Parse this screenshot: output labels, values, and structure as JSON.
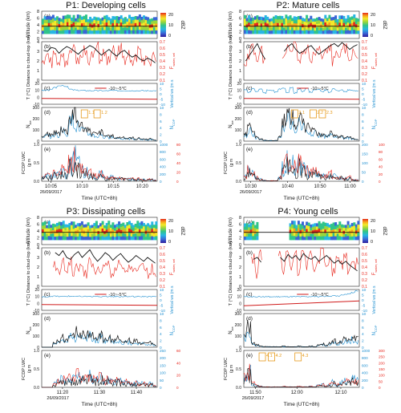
{
  "colors": {
    "black": "#111111",
    "red": "#e8281e",
    "blue": "#1f8fd0",
    "orange": "#e69a1a",
    "tr_red": "#d01b1b",
    "colorbar": [
      "#2e1b9b",
      "#3a66d6",
      "#28b6e4",
      "#31c48a",
      "#9ad63c",
      "#f2e92a",
      "#f7a21c",
      "#e4281c"
    ]
  },
  "labels": {
    "alt": "Altitude (km)",
    "dct": "Distance to cloud-top (km)",
    "fwater": "F",
    "fwater_sub": "water, vel",
    "temp": "T (°C)",
    "ww": "Vertical ws (m s",
    "nice": "N",
    "nice_sub": "ice",
    "ndrop": "N",
    "ndrop_sub": "CDP",
    "fcdp": "FCDP LWC",
    "fcdp_unit": "(g m",
    "time": "Time (UTC+8h)",
    "date": "26/09/2017",
    "dbz": "dBZ",
    "cb_ticks": [
      "20",
      "10",
      "0"
    ],
    "legend": "-10~-5°C"
  },
  "chart_data": [
    {
      "type": "line",
      "title": "P1: Developing cells",
      "x_ticks": [
        "10:05",
        "10:10",
        "10:15",
        "10:20"
      ],
      "x_ticks_pos": [
        0.08,
        0.35,
        0.62,
        0.87
      ],
      "date_x": 0.08,
      "panels": {
        "a": {
          "ylim": [
            0,
            8
          ],
          "ticks": [
            "0",
            "2",
            "4",
            "6",
            "8"
          ]
        },
        "b": {
          "ylim": [
            0,
            4
          ],
          "ticks": [
            "0",
            "1",
            "2",
            "3",
            "4"
          ],
          "r_ticks": [
            "0.1",
            "0.2",
            "0.3",
            "0.4",
            "0.5",
            "0.6",
            "0.7"
          ]
        },
        "c": {
          "ticks": [
            "20",
            "10",
            "0",
            "-10"
          ],
          "r_ticks": [
            "10",
            "5",
            "0",
            "-5",
            "-10"
          ]
        },
        "d": {
          "ticks": [
            "300",
            "200",
            "100",
            "0"
          ],
          "r_ticks": [
            "10",
            "8",
            "6",
            "4",
            "2",
            "0"
          ]
        },
        "e": {
          "ticks": [
            "1.0",
            "0.5",
            "0.0"
          ],
          "r_ticks": [
            "1000",
            "800",
            "600",
            "400",
            "200",
            "0"
          ],
          "r2_ticks": [
            "80",
            "60",
            "40",
            "20",
            "0"
          ]
        }
      },
      "annotations": [
        {
          "text": "1.1",
          "x": 0.37,
          "panel": "d"
        },
        {
          "text": "1.2",
          "x": 0.48,
          "panel": "d"
        }
      ],
      "dct_series": [
        3.1,
        3.0,
        3.4,
        3.3,
        2.8,
        3.2,
        3.5,
        3.3,
        3.0,
        2.7,
        3.1,
        3.3,
        3.6,
        3.4,
        3.0,
        2.6,
        2.9,
        3.2,
        2.8,
        2.5,
        2.9,
        3.1,
        2.7,
        2.4,
        2.6,
        2.2,
        2.0,
        2.3,
        2.1,
        1.8
      ],
      "fw_series": [
        0.45,
        0.52,
        0.38,
        0.6,
        0.42,
        0.55,
        0.35,
        0.5,
        0.62,
        0.41,
        0.48,
        0.58,
        0.4,
        0.52,
        0.66,
        0.45,
        0.5,
        0.38,
        0.55,
        0.44,
        0.6,
        0.4,
        0.5,
        0.35,
        0.46,
        0.58,
        0.42,
        0.5,
        0.38,
        0.45
      ],
      "nice_series": [
        40,
        60,
        55,
        80,
        70,
        120,
        90,
        210,
        260,
        180,
        140,
        110,
        90,
        70,
        60,
        80,
        50,
        40,
        45,
        30,
        35,
        30,
        25,
        30,
        20,
        25,
        20,
        15,
        20,
        10
      ],
      "ww_series": [
        0.5,
        1,
        1.5,
        4,
        6,
        7,
        6,
        2,
        1,
        0.5,
        0.3,
        0.2,
        0.1,
        0,
        0.1,
        0,
        -0.1,
        0,
        0.1,
        0,
        0,
        0,
        0,
        0,
        0,
        0,
        0,
        0,
        0,
        0
      ]
    },
    {
      "type": "line",
      "title": "P2: Mature cells",
      "x_ticks": [
        "10:30",
        "10:40",
        "10:50",
        "11:00"
      ],
      "x_ticks_pos": [
        0.06,
        0.38,
        0.66,
        0.92
      ],
      "date_x": 0.06,
      "panels": {
        "a": {
          "ylim": [
            0,
            8
          ],
          "ticks": [
            "0",
            "2",
            "4",
            "6",
            "8"
          ]
        },
        "b": {
          "ylim": [
            0,
            4
          ],
          "ticks": [
            "0",
            "1",
            "2",
            "3",
            "4"
          ],
          "r_ticks": [
            "0.1",
            "0.2",
            "0.3",
            "0.4",
            "0.5",
            "0.6",
            "0.7"
          ]
        },
        "c": {
          "ticks": [
            "20",
            "10",
            "0",
            "-10"
          ],
          "r_ticks": [
            "10",
            "5",
            "0",
            "-5",
            "-10"
          ]
        },
        "d": {
          "ticks": [
            "300",
            "200",
            "100",
            "0"
          ],
          "r_ticks": [
            "10",
            "8",
            "6",
            "4",
            "2",
            "0"
          ]
        },
        "e": {
          "ticks": [
            "1.0",
            "0.5",
            "0.0"
          ],
          "r_ticks": [
            "200",
            "150",
            "100",
            "50",
            "0"
          ],
          "r2_ticks": [
            "100",
            "80",
            "60",
            "40",
            "20",
            "0"
          ]
        }
      },
      "annotations": [
        {
          "text": "2.1",
          "x": 0.44,
          "panel": "d"
        },
        {
          "text": "2.2",
          "x": 0.6,
          "panel": "d"
        },
        {
          "text": "2.3",
          "x": 0.68,
          "panel": "d"
        }
      ],
      "dct_series": [
        2.0,
        2.6,
        3.2,
        3.8,
        2.9,
        2.2,
        null,
        null,
        null,
        null,
        3.0,
        3.5,
        3.8,
        3.2,
        2.8,
        3.0,
        3.4,
        3.6,
        3.1,
        2.7,
        3.0,
        3.3,
        3.6,
        3.8,
        3.5,
        3.9,
        3.6,
        3.2,
        3.5,
        3.7
      ],
      "fw_series": [
        0.3,
        0.5,
        0.6,
        0.45,
        0.55,
        0.4,
        null,
        null,
        null,
        null,
        0.45,
        0.6,
        0.5,
        0.65,
        0.4,
        0.55,
        0.6,
        0.42,
        0.5,
        0.58,
        0.46,
        0.52,
        0.62,
        0.4,
        0.55,
        0.5,
        0.6,
        0.45,
        0.52,
        0.5
      ],
      "nice_series": [
        60,
        120,
        80,
        40,
        20,
        10,
        5,
        5,
        5,
        40,
        180,
        240,
        200,
        150,
        210,
        170,
        120,
        90,
        100,
        70,
        60,
        50,
        80,
        60,
        40,
        50,
        30,
        40,
        20,
        15
      ],
      "ww_series": [
        1,
        -2,
        3,
        -1,
        2,
        -3,
        1,
        0,
        -2,
        2,
        3,
        -2,
        4,
        -3,
        2,
        -1,
        3,
        -2,
        1,
        2,
        -1,
        1,
        -2,
        2,
        0,
        1,
        -1,
        1,
        0,
        0
      ]
    },
    {
      "type": "line",
      "title": "P3: Dissipating cells",
      "x_ticks": [
        "11:20",
        "11:30",
        "11:40"
      ],
      "x_ticks_pos": [
        0.18,
        0.5,
        0.82
      ],
      "date_x": 0.14,
      "panels": {
        "a": {
          "ylim": [
            0,
            8
          ],
          "ticks": [
            "0",
            "2",
            "4",
            "6",
            "8"
          ]
        },
        "b": {
          "ylim": [
            0,
            4
          ],
          "ticks": [
            "0",
            "1",
            "2",
            "3",
            "4"
          ],
          "r_ticks": [
            "0.1",
            "0.2",
            "0.3",
            "0.4",
            "0.5",
            "0.6",
            "0.7"
          ]
        },
        "c": {
          "ticks": [
            "20",
            "10",
            "0",
            "-10"
          ],
          "r_ticks": [
            "10",
            "5",
            "0",
            "-5",
            "-10"
          ]
        },
        "d": {
          "ticks": [
            "300",
            "200",
            "100",
            "0"
          ],
          "r_ticks": [
            "10",
            "8",
            "6",
            "4",
            "2",
            "0"
          ]
        },
        "e": {
          "ticks": [
            "1.0",
            "0.5",
            "0.0"
          ],
          "r_ticks": [
            "250",
            "200",
            "150",
            "100",
            "50",
            "0"
          ],
          "r2_ticks": [
            "60",
            "40",
            "20",
            "0"
          ]
        }
      },
      "annotations": [],
      "dct_series": [
        null,
        null,
        null,
        3.5,
        3.2,
        3.7,
        3.0,
        2.8,
        3.3,
        3.6,
        3.0,
        3.4,
        3.8,
        3.1,
        2.6,
        3.0,
        3.5,
        3.2,
        2.7,
        3.1,
        3.4,
        2.9,
        2.5,
        2.8,
        3.2,
        2.9,
        2.6,
        3.0,
        2.7,
        2.4
      ],
      "fw_series": [
        null,
        null,
        null,
        0.4,
        0.3,
        0.45,
        0.35,
        0.5,
        0.3,
        0.42,
        0.38,
        0.3,
        0.45,
        0.4,
        0.35,
        0.28,
        0.4,
        0.46,
        0.3,
        0.38,
        0.42,
        0.32,
        0.36,
        0.4,
        0.3,
        0.35,
        0.42,
        0.3,
        0.38,
        0.34
      ],
      "nice_series": [
        0,
        0,
        0,
        40,
        60,
        90,
        70,
        120,
        100,
        140,
        110,
        90,
        130,
        100,
        80,
        110,
        70,
        90,
        60,
        80,
        70,
        50,
        60,
        40,
        55,
        35,
        45,
        30,
        40,
        20
      ],
      "ww_series": [
        0,
        0,
        0,
        1,
        0.5,
        1,
        0.5,
        1,
        0.5,
        0.8,
        0.5,
        0.3,
        0.6,
        0.4,
        0.5,
        0.2,
        0.4,
        0.6,
        0.3,
        0.5,
        0.2,
        0.4,
        0.3,
        0.5,
        0.2,
        0.3,
        0.4,
        0.2,
        0.3,
        0.2
      ]
    },
    {
      "type": "line",
      "title": "P4: Young cells",
      "x_ticks": [
        "11:50",
        "12:00",
        "12:10"
      ],
      "x_ticks_pos": [
        0.1,
        0.46,
        0.84
      ],
      "date_x": 0.08,
      "panels": {
        "a": {
          "ylim": [
            0,
            8
          ],
          "ticks": [
            "0",
            "2",
            "4",
            "6",
            "8"
          ]
        },
        "b": {
          "ylim": [
            0,
            4
          ],
          "ticks": [
            "0",
            "1",
            "2",
            "3",
            "4"
          ],
          "r_ticks": [
            "0.1",
            "0.2",
            "0.3",
            "0.4",
            "0.5",
            "0.6",
            "0.7"
          ]
        },
        "c": {
          "ticks": [
            "20",
            "10",
            "0",
            "-10"
          ],
          "r_ticks": [
            "10",
            "5",
            "0",
            "-5",
            "-10"
          ]
        },
        "d": {
          "ticks": [
            "300",
            "200",
            "100",
            "0"
          ],
          "r_ticks": [
            "10",
            "8",
            "6",
            "4",
            "2",
            "0"
          ]
        },
        "e": {
          "ticks": [
            "1.0",
            "0.5",
            "0.0"
          ],
          "r_ticks": [
            "1000",
            "800",
            "600",
            "400",
            "200",
            "0"
          ],
          "r2_ticks": [
            "300",
            "250",
            "200",
            "150",
            "100",
            "50",
            "0"
          ]
        }
      },
      "annotations": [
        {
          "text": "4.1",
          "x": 0.16,
          "panel": "e"
        },
        {
          "text": "4.2",
          "x": 0.24,
          "panel": "e"
        },
        {
          "text": "4.3",
          "x": 0.47,
          "panel": "e"
        }
      ],
      "dct_series": [
        null,
        null,
        2.8,
        3.0,
        2.5,
        null,
        null,
        null,
        null,
        3.0,
        2.6,
        3.3,
        2.9,
        3.2,
        2.7,
        3.4,
        3.0,
        2.8,
        3.1,
        2.6,
        2.9,
        3.2,
        2.8,
        2.4,
        2.7,
        2.3,
        2.6,
        2.2,
        1.9,
        1.6
      ],
      "fw_series": [
        null,
        null,
        0.55,
        0.3,
        0.6,
        null,
        null,
        null,
        null,
        0.6,
        0.35,
        0.65,
        0.4,
        0.58,
        0.3,
        0.62,
        0.45,
        0.6,
        0.35,
        0.55,
        0.62,
        0.4,
        0.5,
        0.3,
        0.55,
        0.45,
        0.6,
        0.38,
        0.5,
        0.45
      ],
      "nice_series": [
        120,
        180,
        40,
        20,
        10,
        5,
        5,
        5,
        5,
        5,
        10,
        5,
        5,
        5,
        10,
        5,
        5,
        10,
        5,
        20,
        30,
        15,
        40,
        60,
        30,
        50,
        80,
        60,
        90,
        70
      ],
      "ww_series": [
        0.5,
        0.5,
        0,
        0,
        0.2,
        0,
        0,
        0,
        0,
        0.1,
        0,
        0,
        0.1,
        0,
        0,
        0.2,
        0,
        0.3,
        0.5,
        0.4,
        0.8,
        0.6,
        1,
        1.5,
        1.2,
        2,
        3,
        4,
        6,
        8
      ]
    }
  ]
}
